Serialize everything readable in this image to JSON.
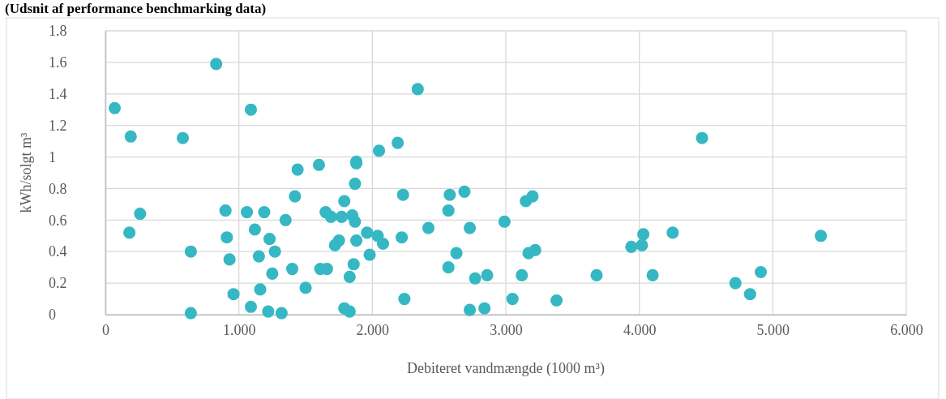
{
  "chart_data": {
    "type": "scatter",
    "title": "(Udsnit af performance benchmarking data)",
    "xlabel": "Debiteret vandmængde (1000 m³)",
    "ylabel": "kWh/solgt m³",
    "xlim": [
      0,
      6
    ],
    "xticks": [
      {
        "value": 0,
        "label": "0"
      },
      {
        "value": 1,
        "label": "1.000"
      },
      {
        "value": 2,
        "label": "2.000"
      },
      {
        "value": 3,
        "label": "3.000"
      },
      {
        "value": 4,
        "label": "4.000"
      },
      {
        "value": 5,
        "label": "5.000"
      },
      {
        "value": 6,
        "label": "6.000"
      }
    ],
    "ylim": [
      0,
      1.8
    ],
    "yticks": [
      0,
      0.2,
      0.4,
      0.6,
      0.8,
      1,
      1.2,
      1.4,
      1.6,
      1.8
    ],
    "grid": true,
    "marker": "circle",
    "series": [
      {
        "color": "#36b8c4",
        "x": [
          0.83,
          0.07,
          1.09,
          0.19,
          0.58,
          2.34,
          2.05,
          2.19,
          1.88,
          1.88,
          1.44,
          1.6,
          1.87,
          1.42,
          1.79,
          2.23,
          0.26,
          0.9,
          1.06,
          1.19,
          1.35,
          1.65,
          1.69,
          1.77,
          1.85,
          1.87,
          0.18,
          0.91,
          1.12,
          1.23,
          1.96,
          2.04,
          2.08,
          2.22,
          2.42,
          1.75,
          1.72,
          1.88,
          0.64,
          0.93,
          1.15,
          1.27,
          1.98,
          1.86,
          1.25,
          1.4,
          1.61,
          1.66,
          1.83,
          0.96,
          1.16,
          1.5,
          2.24,
          0.64,
          1.09,
          1.22,
          1.32,
          1.79,
          1.83,
          2.58,
          2.69,
          2.57,
          2.73,
          2.99,
          3.15,
          3.2,
          2.63,
          2.57,
          2.77,
          2.86,
          3.12,
          3.17,
          3.22,
          3.68,
          2.73,
          2.84,
          3.05,
          3.38,
          4.03,
          3.94,
          4.02,
          4.25,
          4.1,
          4.47,
          4.72,
          4.83,
          4.91,
          5.36
        ],
        "values": [
          1.59,
          1.31,
          1.3,
          1.13,
          1.12,
          1.43,
          1.04,
          1.09,
          0.97,
          0.96,
          0.92,
          0.95,
          0.83,
          0.75,
          0.72,
          0.76,
          0.64,
          0.66,
          0.65,
          0.65,
          0.6,
          0.65,
          0.62,
          0.62,
          0.63,
          0.59,
          0.52,
          0.49,
          0.54,
          0.48,
          0.52,
          0.5,
          0.45,
          0.49,
          0.55,
          0.47,
          0.44,
          0.47,
          0.4,
          0.35,
          0.37,
          0.4,
          0.38,
          0.32,
          0.26,
          0.29,
          0.29,
          0.29,
          0.24,
          0.13,
          0.16,
          0.17,
          0.1,
          0.01,
          0.05,
          0.02,
          0.01,
          0.04,
          0.02,
          0.76,
          0.78,
          0.66,
          0.55,
          0.59,
          0.72,
          0.75,
          0.39,
          0.3,
          0.23,
          0.25,
          0.25,
          0.39,
          0.41,
          0.25,
          0.03,
          0.04,
          0.1,
          0.09,
          0.51,
          0.43,
          0.44,
          0.52,
          0.25,
          1.12,
          0.2,
          0.13,
          0.27,
          0.5
        ]
      }
    ]
  }
}
